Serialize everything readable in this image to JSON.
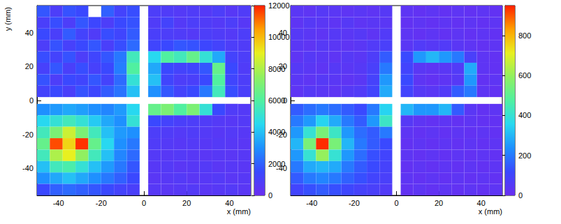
{
  "chart_data": [
    {
      "type": "heatmap",
      "x_label": "x (mm)",
      "y_label": "y (mm)",
      "xlim": [
        -50,
        50
      ],
      "xticks": [
        -40,
        -20,
        0,
        20,
        40
      ],
      "ylim": [
        -56,
        56
      ],
      "yticks": [
        -40,
        -20,
        0,
        20,
        40
      ],
      "x_bins": [
        [
          -50,
          -44
        ],
        [
          -44,
          -38
        ],
        [
          -38,
          -32
        ],
        [
          -32,
          -26
        ],
        [
          -26,
          -20
        ],
        [
          -20,
          -14
        ],
        [
          -14,
          -8
        ],
        [
          -8,
          -2
        ],
        [
          2,
          8
        ],
        [
          8,
          14
        ],
        [
          14,
          20
        ],
        [
          20,
          26
        ],
        [
          26,
          32
        ],
        [
          32,
          38
        ],
        [
          38,
          44
        ],
        [
          44,
          50
        ]
      ],
      "y_bins": [
        [
          49.25,
          56
        ],
        [
          42.5,
          49.25
        ],
        [
          35.75,
          42.5
        ],
        [
          29,
          35.75
        ],
        [
          22.25,
          29
        ],
        [
          15.5,
          22.25
        ],
        [
          8.75,
          15.5
        ],
        [
          2,
          8.75
        ],
        [
          -8.75,
          -2
        ],
        [
          -15.5,
          -8.75
        ],
        [
          -22.25,
          -15.5
        ],
        [
          -29,
          -22.25
        ],
        [
          -35.75,
          -29
        ],
        [
          -42.5,
          -35.75
        ],
        [
          -49.25,
          -42.5
        ],
        [
          -56,
          -49.25
        ]
      ],
      "values": [
        [
          1800,
          900,
          1700,
          1500,
          null,
          2000,
          1200,
          1600,
          900,
          800,
          700,
          800,
          700,
          900,
          600,
          800
        ],
        [
          1000,
          1600,
          900,
          1800,
          1400,
          900,
          1500,
          1700,
          800,
          1200,
          700,
          900,
          800,
          700,
          900,
          600
        ],
        [
          1500,
          1000,
          1900,
          1200,
          800,
          1600,
          1300,
          1900,
          1000,
          900,
          800,
          700,
          900,
          800,
          700,
          900
        ],
        [
          900,
          1700,
          1100,
          1500,
          1800,
          1000,
          1600,
          2200,
          1300,
          1500,
          1800,
          1700,
          1400,
          1200,
          900,
          800
        ],
        [
          1600,
          1200,
          1700,
          900,
          1300,
          1800,
          2500,
          5500,
          4500,
          6000,
          5500,
          6500,
          5000,
          3500,
          1200,
          900
        ],
        [
          1100,
          1800,
          1000,
          1600,
          1100,
          1500,
          2600,
          6000,
          3500,
          1500,
          1200,
          1300,
          1800,
          6500,
          1500,
          800
        ],
        [
          1700,
          900,
          1500,
          1300,
          1800,
          1200,
          2200,
          5000,
          4000,
          1300,
          900,
          1000,
          1500,
          6000,
          1300,
          900
        ],
        [
          1200,
          1500,
          1000,
          1700,
          1400,
          1900,
          2400,
          4000,
          3000,
          1800,
          1200,
          1500,
          2500,
          5500,
          1600,
          1000
        ],
        [
          3000,
          3200,
          3500,
          3300,
          3000,
          2800,
          3200,
          4500,
          6500,
          7000,
          6000,
          7000,
          5000,
          1500,
          800,
          700
        ],
        [
          4500,
          5000,
          5500,
          5000,
          4200,
          3500,
          3000,
          5000,
          1500,
          1200,
          1000,
          900,
          800,
          700,
          600,
          700
        ],
        [
          5500,
          7000,
          8500,
          7000,
          5500,
          4000,
          3200,
          3000,
          900,
          800,
          700,
          800,
          700,
          600,
          700,
          600
        ],
        [
          6500,
          11500,
          9500,
          11800,
          6500,
          4500,
          3000,
          2500,
          800,
          700,
          600,
          700,
          600,
          700,
          600,
          500
        ],
        [
          5500,
          8000,
          9000,
          7500,
          5500,
          4000,
          2800,
          2200,
          700,
          600,
          700,
          600,
          500,
          600,
          500,
          600
        ],
        [
          4000,
          5500,
          5800,
          5000,
          4000,
          3200,
          2500,
          1800,
          600,
          700,
          500,
          600,
          700,
          500,
          600,
          500
        ],
        [
          3000,
          3500,
          4000,
          3500,
          3000,
          2500,
          2000,
          1500,
          500,
          600,
          700,
          500,
          600,
          700,
          500,
          600
        ],
        [
          1500,
          2000,
          2200,
          2000,
          1800,
          1500,
          1200,
          1000,
          600,
          500,
          600,
          700,
          500,
          600,
          700,
          500
        ]
      ],
      "color_range": [
        0,
        12000
      ],
      "color_ticks": [
        0,
        2000,
        4000,
        6000,
        8000,
        10000,
        12000
      ]
    },
    {
      "type": "heatmap",
      "x_label": "x (mm)",
      "xlim": [
        -50,
        50
      ],
      "xticks": [
        -40,
        -20,
        0,
        20,
        40
      ],
      "ylim": [
        -56,
        56
      ],
      "yticks": [
        -40,
        -20,
        0,
        20,
        40
      ],
      "x_bins": [
        [
          -50,
          -44
        ],
        [
          -44,
          -38
        ],
        [
          -38,
          -32
        ],
        [
          -32,
          -26
        ],
        [
          -26,
          -20
        ],
        [
          -20,
          -14
        ],
        [
          -14,
          -8
        ],
        [
          -8,
          -2
        ],
        [
          2,
          8
        ],
        [
          8,
          14
        ],
        [
          14,
          20
        ],
        [
          20,
          26
        ],
        [
          26,
          32
        ],
        [
          32,
          38
        ],
        [
          38,
          44
        ],
        [
          44,
          50
        ]
      ],
      "y_bins": [
        [
          49.25,
          56
        ],
        [
          42.5,
          49.25
        ],
        [
          35.75,
          42.5
        ],
        [
          29,
          35.75
        ],
        [
          22.25,
          29
        ],
        [
          15.5,
          22.25
        ],
        [
          8.75,
          15.5
        ],
        [
          2,
          8.75
        ],
        [
          -8.75,
          -2
        ],
        [
          -15.5,
          -8.75
        ],
        [
          -22.25,
          -15.5
        ],
        [
          -29,
          -22.25
        ],
        [
          -35.75,
          -29
        ],
        [
          -42.5,
          -35.75
        ],
        [
          -49.25,
          -42.5
        ],
        [
          -56,
          -49.25
        ]
      ],
      "values": [
        [
          40,
          30,
          50,
          40,
          30,
          40,
          30,
          50,
          30,
          20,
          30,
          20,
          30,
          20,
          30,
          20
        ],
        [
          30,
          50,
          40,
          30,
          50,
          30,
          40,
          40,
          20,
          30,
          20,
          30,
          20,
          30,
          20,
          30
        ],
        [
          50,
          40,
          30,
          50,
          40,
          50,
          30,
          60,
          30,
          20,
          30,
          20,
          30,
          20,
          30,
          20
        ],
        [
          40,
          30,
          50,
          40,
          30,
          40,
          60,
          80,
          40,
          60,
          50,
          60,
          40,
          30,
          20,
          30
        ],
        [
          30,
          50,
          40,
          30,
          50,
          40,
          70,
          150,
          120,
          250,
          300,
          250,
          200,
          80,
          30,
          20
        ],
        [
          50,
          40,
          30,
          50,
          40,
          50,
          80,
          200,
          100,
          40,
          30,
          40,
          60,
          280,
          30,
          20
        ],
        [
          40,
          30,
          50,
          40,
          30,
          40,
          90,
          250,
          120,
          30,
          20,
          30,
          50,
          250,
          20,
          30
        ],
        [
          30,
          50,
          40,
          30,
          50,
          60,
          100,
          280,
          100,
          50,
          40,
          60,
          150,
          200,
          30,
          20
        ],
        [
          150,
          180,
          200,
          180,
          150,
          120,
          200,
          350,
          300,
          250,
          250,
          300,
          150,
          40,
          20,
          30
        ],
        [
          200,
          250,
          350,
          280,
          200,
          150,
          250,
          420,
          50,
          30,
          20,
          30,
          20,
          30,
          20,
          20
        ],
        [
          250,
          400,
          550,
          420,
          250,
          180,
          150,
          200,
          30,
          20,
          30,
          20,
          30,
          20,
          30,
          20
        ],
        [
          300,
          550,
          940,
          550,
          300,
          200,
          150,
          120,
          20,
          30,
          20,
          30,
          20,
          30,
          20,
          30
        ],
        [
          250,
          400,
          600,
          400,
          250,
          180,
          130,
          100,
          30,
          20,
          30,
          20,
          30,
          20,
          30,
          20
        ],
        [
          200,
          280,
          300,
          280,
          200,
          150,
          120,
          90,
          20,
          30,
          20,
          30,
          20,
          30,
          20,
          30
        ],
        [
          150,
          200,
          220,
          200,
          160,
          130,
          100,
          80,
          30,
          20,
          30,
          20,
          30,
          20,
          30,
          20
        ],
        [
          100,
          130,
          150,
          130,
          110,
          90,
          80,
          60,
          20,
          30,
          20,
          30,
          20,
          30,
          20,
          30
        ]
      ],
      "color_range": [
        0,
        950
      ],
      "color_ticks": [
        0,
        200,
        400,
        600,
        800
      ]
    }
  ]
}
